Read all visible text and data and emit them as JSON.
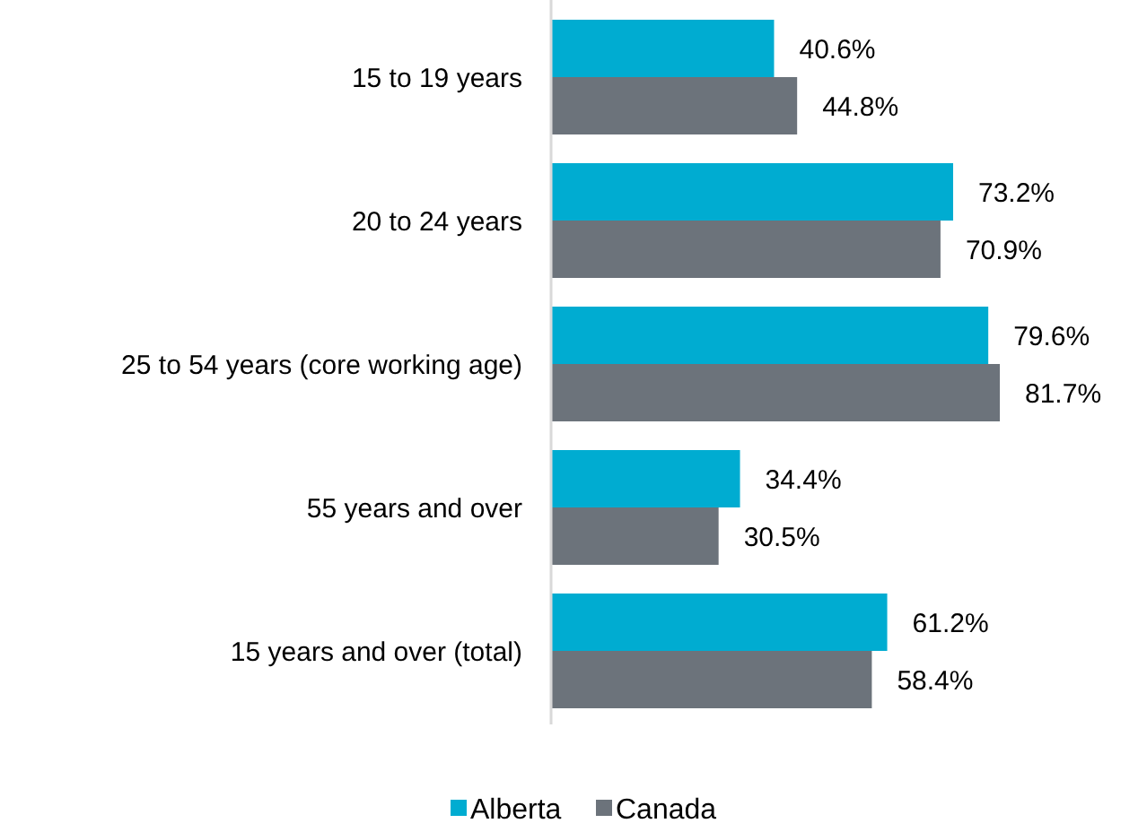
{
  "chart_data": {
    "type": "bar",
    "orientation": "horizontal",
    "categories": [
      "15 to 19 years",
      "20 to 24 years",
      "25 to 54 years (core working age)",
      "55 years and over",
      "15 years and over (total)"
    ],
    "series": [
      {
        "name": "Alberta",
        "color": "#00acd1",
        "values": [
          40.6,
          73.2,
          79.6,
          34.4,
          61.2
        ],
        "value_labels": [
          "40.6%",
          "73.2%",
          "79.6%",
          "34.4%",
          "61.2%"
        ]
      },
      {
        "name": "Canada",
        "color": "#6c737b",
        "values": [
          44.8,
          70.9,
          81.7,
          30.5,
          58.4
        ],
        "value_labels": [
          "44.8%",
          "70.9%",
          "81.7%",
          "30.5%",
          "58.4%"
        ]
      }
    ],
    "legend": "bottom"
  }
}
